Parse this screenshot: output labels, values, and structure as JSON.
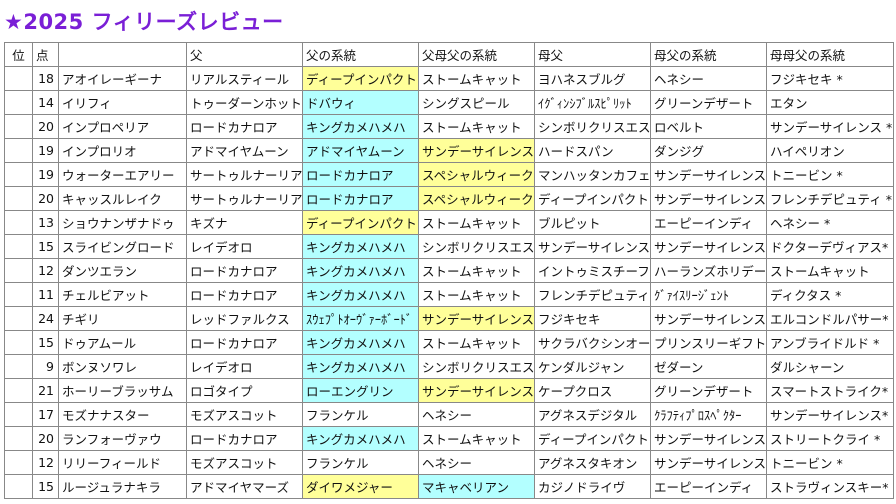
{
  "header": {
    "title": "★2025 フィリーズレビュー"
  },
  "table": {
    "headers": [
      "位",
      "点",
      "父",
      "父の系統",
      "父母父の系統",
      "母父",
      "母父の系統",
      "母母父の系統"
    ],
    "rows": [
      {
        "cells": [
          "18",
          "アオイレーギーナ",
          "リアルスティール",
          "ディープインパクト",
          "ストームキャット",
          "ヨハネスブルグ",
          "ヘネシー",
          "フジキセキ *"
        ],
        "fill": {
          "3": "#ffff99"
        }
      },
      {
        "cells": [
          "14",
          "イリフィ",
          "トゥーダーンホット",
          "ドバウィ",
          "シングスピール",
          "ｲｸﾞｨﾝｼﾌﾞﾙｽﾋﾟﾘｯﾄ",
          "グリーンデザート",
          "エタン"
        ],
        "fill": {
          "3": "#b3ffff"
        }
      },
      {
        "cells": [
          "20",
          "インプロペリア",
          "ロードカナロア",
          "キングカメハメハ",
          "ストームキャット",
          "シンボリクリスエス",
          "ロベルト",
          "サンデーサイレンス *"
        ],
        "fill": {
          "3": "#b3ffff"
        }
      },
      {
        "cells": [
          "19",
          "インプロリオ",
          "アドマイヤムーン",
          "アドマイヤムーン",
          "サンデーサイレンス",
          "ハードスパン",
          "ダンジグ",
          "ハイペリオン"
        ],
        "fill": {
          "3": "#b3ffff",
          "4": "#ffff99"
        }
      },
      {
        "cells": [
          "19",
          "ウォーターエアリー",
          "サートゥルナーリア",
          "ロードカナロア",
          "スペシャルウィーク",
          "マンハッタンカフェ",
          "サンデーサイレンス",
          "トニービン *"
        ],
        "fill": {
          "3": "#b3ffff",
          "4": "#ffff99"
        }
      },
      {
        "cells": [
          "20",
          "キャッスルレイク",
          "サートゥルナーリア",
          "ロードカナロア",
          "スペシャルウィーク",
          "ディープインパクト",
          "サンデーサイレンス",
          "フレンチデピュティ *"
        ],
        "fill": {
          "3": "#b3ffff",
          "4": "#ffff99"
        }
      },
      {
        "cells": [
          "13",
          "ショウナンザナドゥ",
          "キズナ",
          "ディープインパクト",
          "ストームキャット",
          "ブルピット",
          "エーピーインディ",
          "ヘネシー *"
        ],
        "fill": {
          "3": "#ffff99"
        }
      },
      {
        "cells": [
          "15",
          "スライビングロード",
          "レイデオロ",
          "キングカメハメハ",
          "シンボリクリスエス",
          "サンデーサイレンス",
          "サンデーサイレンス",
          "ドクターデヴィアス*"
        ],
        "fill": {
          "3": "#b3ffff"
        }
      },
      {
        "cells": [
          "12",
          "ダンツエラン",
          "ロードカナロア",
          "キングカメハメハ",
          "ストームキャット",
          "イントゥミスチーフ",
          "ハーランズホリデー",
          "ストームキャット"
        ],
        "fill": {
          "3": "#b3ffff"
        }
      },
      {
        "cells": [
          "11",
          "チェルビアット",
          "ロードカナロア",
          "キングカメハメハ",
          "ストームキャット",
          "フレンチデピュティ",
          "ｸﾞｧｲｽﾘｰｼﾞｪﾝﾄ",
          "ディクタス *"
        ],
        "fill": {
          "3": "#b3ffff"
        }
      },
      {
        "cells": [
          "24",
          "チギリ",
          "レッドファルクス",
          "ｽｳｪﾌﾟﾄｵｰｳﾞｧｰﾎﾞｰﾄﾞ",
          "サンデーサイレンス",
          "フジキセキ",
          "サンデーサイレンス",
          "エルコンドルパサー*"
        ],
        "fill": {
          "3": "#b3ffff",
          "4": "#ffff99"
        }
      },
      {
        "cells": [
          "15",
          "ドゥアムール",
          "ロードカナロア",
          "キングカメハメハ",
          "ストームキャット",
          "サクラバクシンオー",
          "プリンスリーギフト",
          "アンブライドルド *"
        ],
        "fill": {
          "3": "#b3ffff"
        }
      },
      {
        "cells": [
          "9",
          "ボンヌソワレ",
          "レイデオロ",
          "キングカメハメハ",
          "シンボリクリスエス",
          "ケンダルジャン",
          "ゼダーン",
          "ダルシャーン"
        ],
        "fill": {
          "3": "#b3ffff"
        }
      },
      {
        "cells": [
          "21",
          "ホーリーブラッサム",
          "ロゴタイプ",
          "ローエングリン",
          "サンデーサイレンス",
          "ケープクロス",
          "グリーンデザート",
          "スマートストライク*"
        ],
        "fill": {
          "3": "#b3ffff",
          "4": "#ffff99"
        }
      },
      {
        "cells": [
          "17",
          "モズナナスター",
          "モズアスコット",
          "フランケル",
          "ヘネシー",
          "アグネスデジタル",
          "ｸﾗﾌﾃｨﾌﾟﾛｽﾍﾟｸﾀｰ",
          "サンデーサイレンス*"
        ],
        "fill": {}
      },
      {
        "cells": [
          "20",
          "ランフォーヴァウ",
          "ロードカナロア",
          "キングカメハメハ",
          "ストームキャット",
          "ディープインパクト",
          "サンデーサイレンス",
          "ストリートクライ *"
        ],
        "fill": {
          "3": "#b3ffff"
        }
      },
      {
        "cells": [
          "12",
          "リリーフィールド",
          "モズアスコット",
          "フランケル",
          "ヘネシー",
          "アグネスタキオン",
          "サンデーサイレンス",
          "トニービン *"
        ],
        "fill": {}
      },
      {
        "cells": [
          "15",
          "ルージュラナキラ",
          "アドマイヤマーズ",
          "ダイワメジャー",
          "マキャベリアン",
          "カジノドライヴ",
          "エーピーインディ",
          "ストラヴィンスキー*"
        ],
        "fill": {
          "3": "#ffff99",
          "4": "#b3ffff"
        }
      }
    ]
  }
}
